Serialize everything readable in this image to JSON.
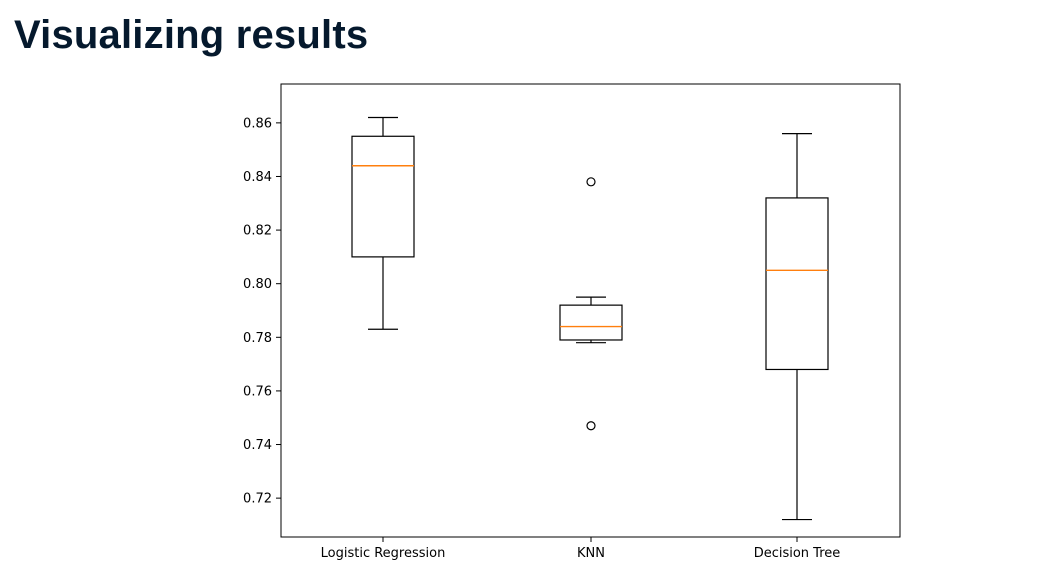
{
  "slide": {
    "title": "Visualizing results"
  },
  "chart_data": {
    "type": "box",
    "title": "",
    "xlabel": "",
    "ylabel": "",
    "categories": [
      "Logistic Regression",
      "KNN",
      "Decision Tree"
    ],
    "ylim": [
      0.7055,
      0.8745
    ],
    "yticks": [
      "0.72",
      "0.74",
      "0.76",
      "0.78",
      "0.80",
      "0.82",
      "0.84",
      "0.86"
    ],
    "grid": false,
    "legend": "none",
    "boxes": [
      {
        "label": "Logistic Regression",
        "whisker_low": 0.783,
        "q1": 0.81,
        "median": 0.844,
        "q3": 0.855,
        "whisker_high": 0.862,
        "outliers": []
      },
      {
        "label": "KNN",
        "whisker_low": 0.778,
        "q1": 0.779,
        "median": 0.784,
        "q3": 0.792,
        "whisker_high": 0.795,
        "outliers": [
          0.838,
          0.747
        ]
      },
      {
        "label": "Decision Tree",
        "whisker_low": 0.712,
        "q1": 0.768,
        "median": 0.805,
        "q3": 0.832,
        "whisker_high": 0.856,
        "outliers": []
      }
    ],
    "colors": {
      "box": "#000000",
      "median": "#ff7f0e",
      "outlier": "#000000"
    }
  }
}
